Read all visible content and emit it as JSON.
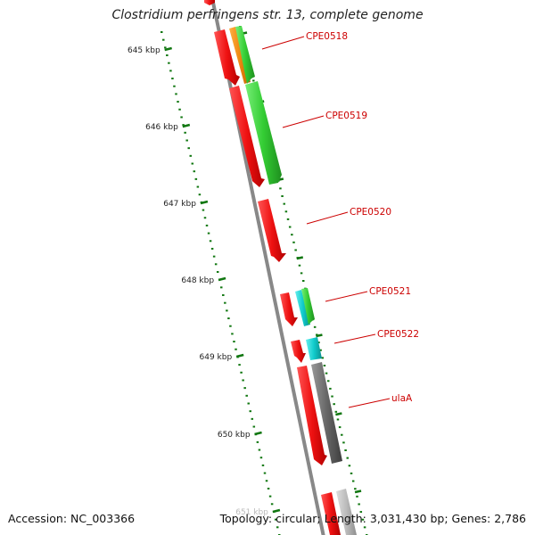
{
  "title": "Clostridium perfringens str. 13, complete genome",
  "footer": {
    "accession": "Accession: NC_003366",
    "summary": "Topology: circular; Length: 3,031,430 bp; Genes: 2,786"
  },
  "scale_ticks": [
    "645 kbp",
    "646 kbp",
    "647 kbp",
    "648 kbp",
    "649 kbp",
    "650 kbp",
    "651 kbp"
  ],
  "gene_labels": [
    "CPE0518",
    "CPE0519",
    "CPE0520",
    "CPE0521",
    "CPE0522",
    "ulaA"
  ],
  "colors": {
    "red": "#ee1111",
    "green": "#33cc33",
    "orange": "#ee8811",
    "cyan": "#11cccc",
    "dark_gray": "#666666",
    "light_gray": "#bbbbbb",
    "tick_green": "#117711",
    "label_red": "#cc0000",
    "backbone": "#888888"
  }
}
